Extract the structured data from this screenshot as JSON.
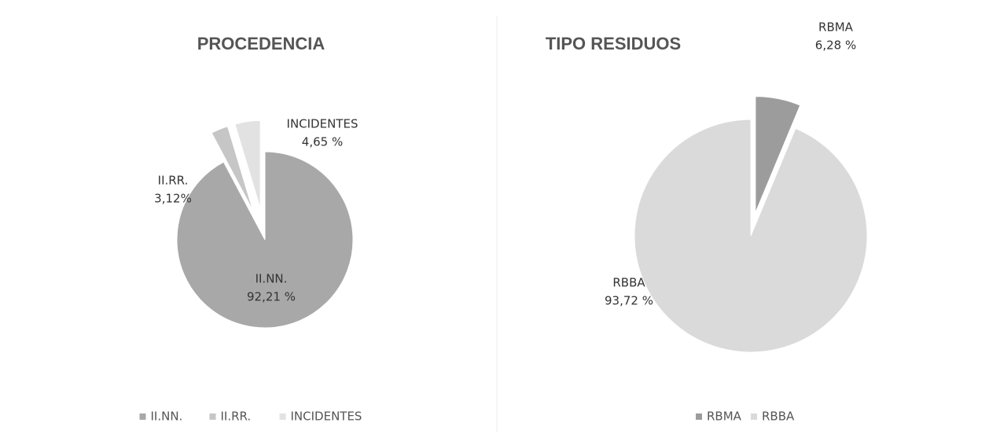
{
  "chart_data": [
    {
      "type": "pie",
      "title": "PROCEDENCIA",
      "categories": [
        "II.NN.",
        "II.RR.",
        "INCIDENTES"
      ],
      "values": [
        92.21,
        3.12,
        4.65
      ],
      "value_labels": [
        "92,21 %",
        "3,12%",
        "4,65 %"
      ],
      "colors": [
        "#a8a8a8",
        "#c6c6c6",
        "#e2e2e2"
      ],
      "legend": "bottom"
    },
    {
      "type": "pie",
      "title": "TIPO RESIDUOS",
      "categories": [
        "RBMA",
        "RBBA"
      ],
      "values": [
        6.28,
        93.72
      ],
      "value_labels": [
        "6,28 %",
        "93,72 %"
      ],
      "colors": [
        "#9c9c9c",
        "#dadada"
      ],
      "legend": "bottom"
    }
  ]
}
